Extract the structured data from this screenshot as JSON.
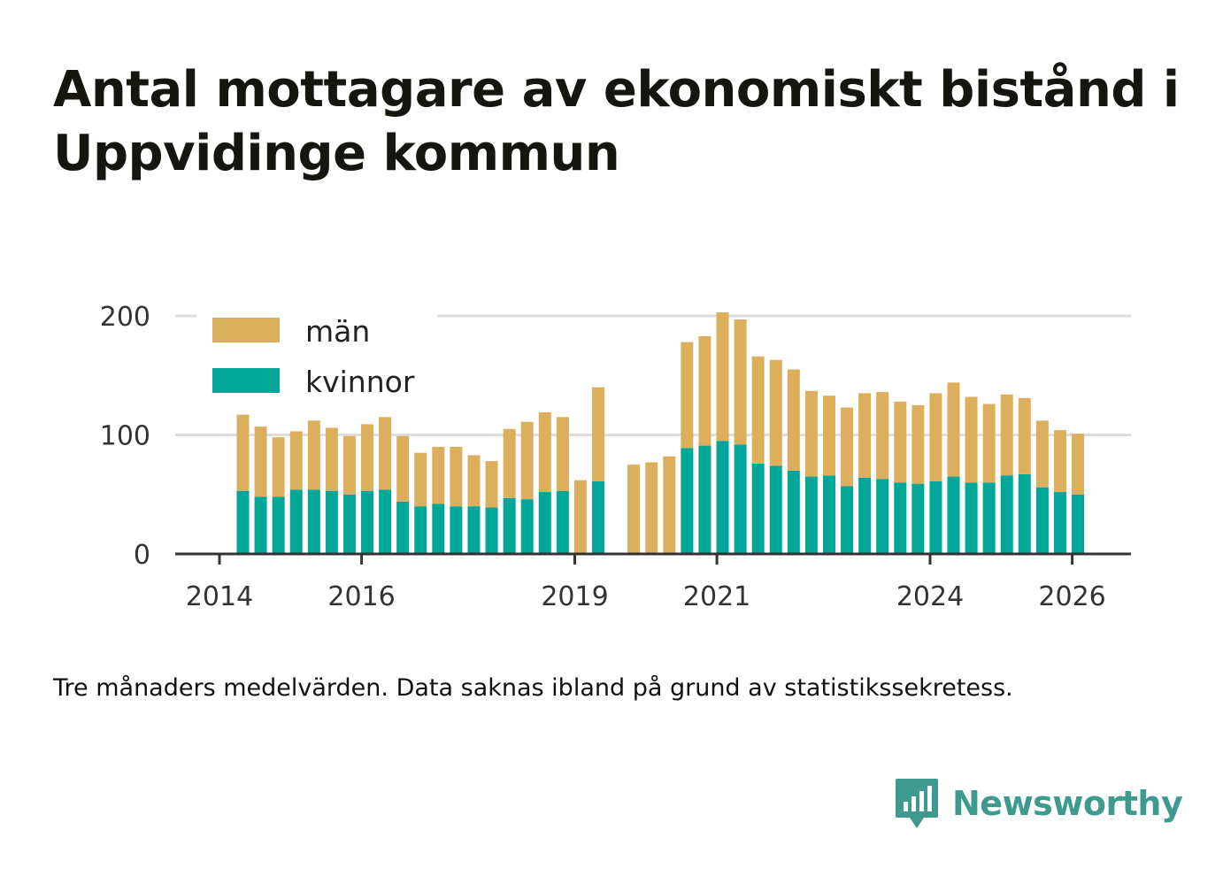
{
  "title": "Antal mottagare av ekonomiskt bistånd i Uppvidinge kommun",
  "note": "Tre månaders medelvärden. Data saknas ibland på grund av statistikssekretess.",
  "brand": {
    "name": "Newsworthy",
    "icon": "newsworthy-logo-icon",
    "color": "#3e9a8f"
  },
  "colors": {
    "men": "#dcaf5c",
    "women": "#00a698",
    "grid": "#dddddd",
    "axis": "#333333"
  },
  "chart_data": {
    "type": "bar",
    "stacked": true,
    "title": "Antal mottagare av ekonomiskt bistånd i Uppvidinge kommun",
    "xlabel": "",
    "ylabel": "",
    "ylim": [
      0,
      200
    ],
    "yticks": [
      0,
      100,
      200
    ],
    "xticks": [
      "2014",
      "2016",
      "2019",
      "2021",
      "2024",
      "2026"
    ],
    "xlim": [
      2014.0,
      2026.5
    ],
    "grid": true,
    "legend_position": "top-left",
    "x": [
      2014.33,
      2014.58,
      2014.83,
      2015.08,
      2015.33,
      2015.58,
      2015.83,
      2016.08,
      2016.33,
      2016.58,
      2016.83,
      2017.08,
      2017.33,
      2017.58,
      2017.83,
      2018.08,
      2018.33,
      2018.58,
      2018.83,
      2019.08,
      2019.33,
      2019.83,
      2020.08,
      2020.33,
      2020.58,
      2020.83,
      2021.08,
      2021.33,
      2021.58,
      2021.83,
      2022.08,
      2022.33,
      2022.58,
      2022.83,
      2023.08,
      2023.33,
      2023.58,
      2023.83,
      2024.08,
      2024.33,
      2024.58,
      2024.83,
      2025.08,
      2025.33,
      2025.58,
      2025.83,
      2026.08
    ],
    "series": [
      {
        "name": "kvinnor",
        "values": [
          53,
          48,
          48,
          54,
          54,
          53,
          50,
          53,
          54,
          44,
          40,
          42,
          40,
          40,
          39,
          47,
          46,
          52,
          53,
          0,
          61,
          0,
          0,
          0,
          89,
          91,
          95,
          92,
          76,
          74,
          70,
          65,
          66,
          57,
          64,
          63,
          60,
          59,
          61,
          65,
          60,
          60,
          66,
          67,
          56,
          52,
          50
        ]
      },
      {
        "name": "män",
        "values": [
          64,
          59,
          50,
          49,
          58,
          53,
          49,
          56,
          61,
          55,
          45,
          48,
          50,
          43,
          39,
          58,
          65,
          67,
          62,
          62,
          79,
          75,
          77,
          82,
          89,
          92,
          108,
          105,
          90,
          89,
          85,
          72,
          67,
          66,
          71,
          73,
          68,
          66,
          74,
          79,
          72,
          66,
          68,
          64,
          56,
          52,
          51
        ]
      }
    ],
    "legend": [
      "män",
      "kvinnor"
    ]
  }
}
